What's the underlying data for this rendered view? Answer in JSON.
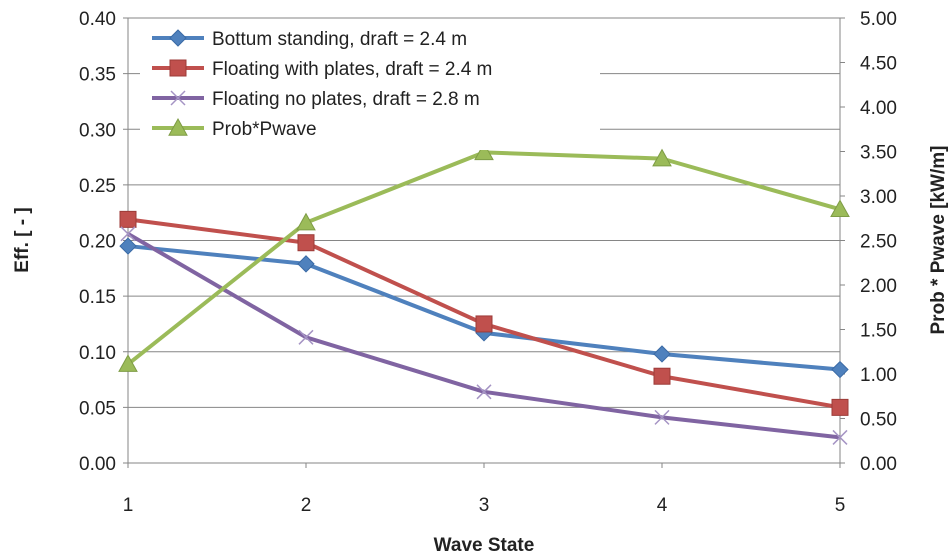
{
  "chart_data": {
    "type": "line",
    "title": "",
    "xlabel": "Wave State",
    "ylabel": "Eff. [ - ]",
    "y2label": "Prob * Pwave [kW/m]",
    "x": [
      1,
      2,
      3,
      4,
      5
    ],
    "ylim": [
      0,
      0.4
    ],
    "y2lim": [
      0,
      5.0
    ],
    "yticks": [
      "0.00",
      "0.05",
      "0.10",
      "0.15",
      "0.20",
      "0.25",
      "0.30",
      "0.35",
      "0.40"
    ],
    "y2ticks": [
      "0.00",
      "0.50",
      "1.00",
      "1.50",
      "2.00",
      "2.50",
      "3.00",
      "3.50",
      "4.00",
      "4.50",
      "5.00"
    ],
    "grid": true,
    "legend_position": "top-left",
    "series": [
      {
        "name": "Bottum standing, draft = 2.4 m",
        "axis": "left",
        "color": "#4F81BD",
        "marker": "diamond",
        "values": [
          0.195,
          0.179,
          0.117,
          0.098,
          0.084
        ]
      },
      {
        "name": "Floating with plates, draft = 2.4 m",
        "axis": "left",
        "color": "#C0504D",
        "marker": "square",
        "values": [
          0.219,
          0.198,
          0.125,
          0.078,
          0.05
        ]
      },
      {
        "name": "Floating no plates, draft = 2.8 m",
        "axis": "left",
        "color": "#8064A2",
        "marker": "x",
        "values": [
          0.206,
          0.113,
          0.064,
          0.041,
          0.023
        ]
      },
      {
        "name": "Prob*Pwave",
        "axis": "right",
        "color": "#9BBB59",
        "marker": "triangle",
        "values": [
          1.11,
          2.7,
          3.49,
          3.42,
          2.85
        ]
      }
    ]
  }
}
